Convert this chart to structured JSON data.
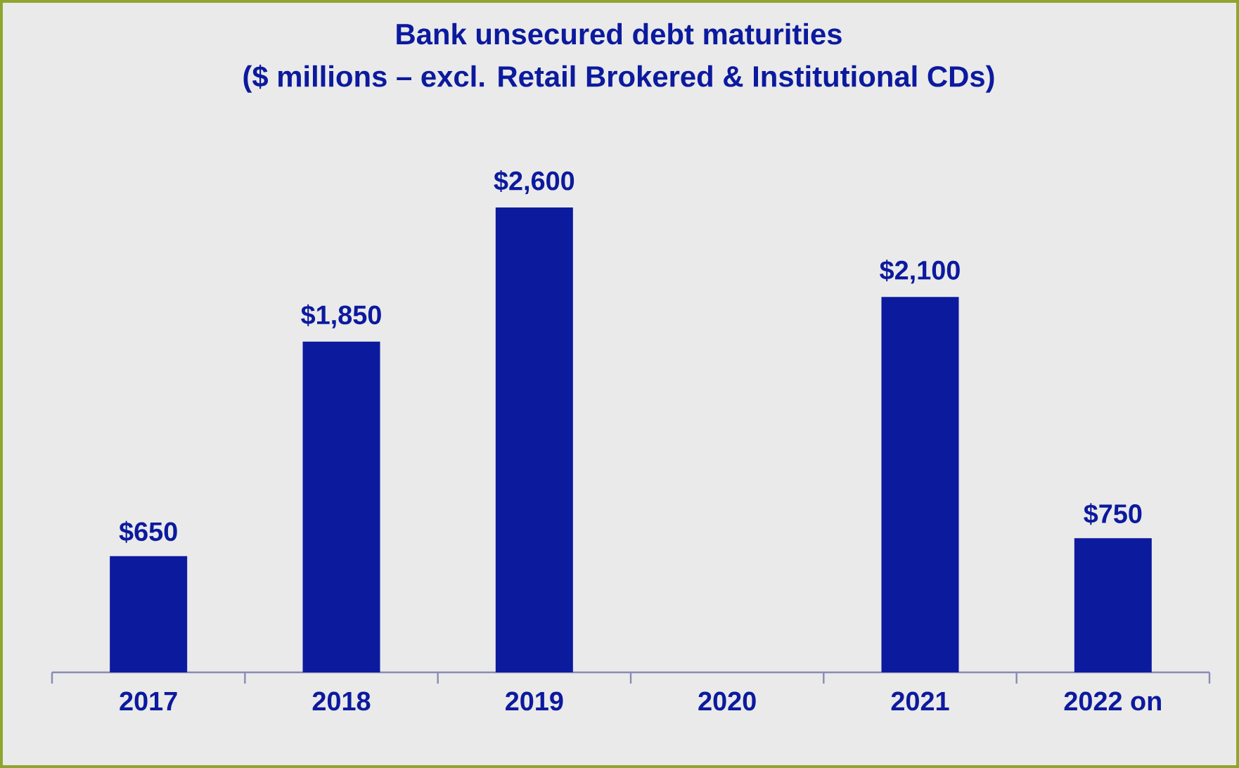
{
  "chart_data": {
    "type": "bar",
    "title": "Bank unsecured debt maturities",
    "subtitle": "($ millions – excl. Retail Brokered & Institutional CDs)",
    "categories": [
      "2017",
      "2018",
      "2019",
      "2020",
      "2021",
      "2022 on"
    ],
    "values": [
      650,
      1850,
      2600,
      null,
      2100,
      750
    ],
    "value_labels": [
      "$650",
      "$1,850",
      "$2,600",
      null,
      "$2,100",
      "$750"
    ],
    "color": "#0c1a9e"
  }
}
